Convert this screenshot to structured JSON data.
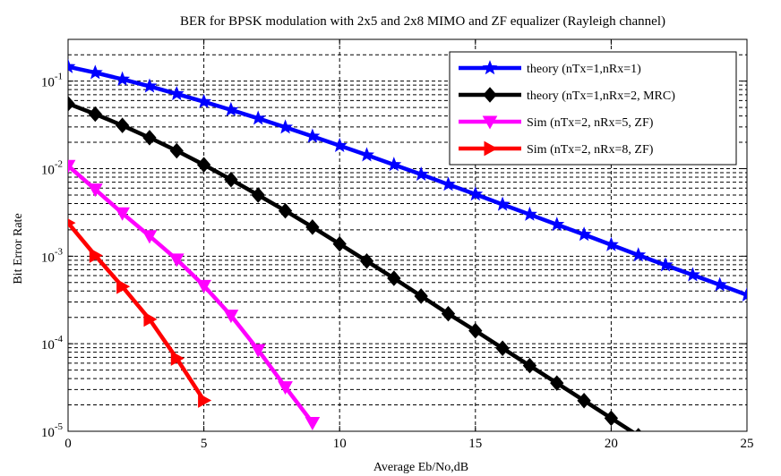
{
  "chart_data": {
    "type": "line",
    "title": "BER for BPSK modulation with 2x5 and 2x8 MIMO and ZF equalizer (Rayleigh channel)",
    "xlabel": "Average Eb/No,dB",
    "ylabel": "Bit Error Rate",
    "xlim": [
      0,
      25
    ],
    "ylim": [
      1e-05,
      0.3
    ],
    "yscale": "log",
    "grid": true,
    "legend_position": "top-right",
    "x_ticks": [
      {
        "value": 0,
        "label": "0"
      },
      {
        "value": 5,
        "label": "5"
      },
      {
        "value": 10,
        "label": "10"
      },
      {
        "value": 15,
        "label": "15"
      },
      {
        "value": 20,
        "label": "20"
      },
      {
        "value": 25,
        "label": "25"
      }
    ],
    "y_ticks": [
      {
        "value": 0.1,
        "base": "10",
        "exp": "-1"
      },
      {
        "value": 0.01,
        "base": "10",
        "exp": "-2"
      },
      {
        "value": 0.001,
        "base": "10",
        "exp": "-3"
      },
      {
        "value": 0.0001,
        "base": "10",
        "exp": "-4"
      },
      {
        "value": 1e-05,
        "base": "10",
        "exp": "-5"
      }
    ],
    "series": [
      {
        "name": "theory (nTx=1,nRx=1)",
        "color": "#0000ff",
        "marker": "pentagram",
        "x": [
          0,
          1,
          2,
          3,
          4,
          5,
          6,
          7,
          8,
          9,
          10,
          11,
          12,
          13,
          14,
          15,
          16,
          17,
          18,
          19,
          20,
          21,
          22,
          23,
          24,
          25
        ],
        "y": [
          0.146,
          0.125,
          0.105,
          0.0875,
          0.0715,
          0.0582,
          0.047,
          0.0375,
          0.0297,
          0.0234,
          0.0183,
          0.0143,
          0.0111,
          0.0086,
          0.0066,
          0.0051,
          0.0039,
          0.003,
          0.0023,
          0.00177,
          0.00135,
          0.00103,
          0.00079,
          0.00061,
          0.00047,
          0.00036
        ]
      },
      {
        "name": "theory (nTx=1,nRx=2, MRC)",
        "color": "#000000",
        "marker": "diamond",
        "x": [
          0,
          1,
          2,
          3,
          4,
          5,
          6,
          7,
          8,
          9,
          10,
          11,
          12,
          13,
          14,
          15,
          16,
          17,
          18,
          19,
          20,
          21
        ],
        "y": [
          0.0553,
          0.042,
          0.0312,
          0.0226,
          0.016,
          0.0111,
          0.0075,
          0.005,
          0.0033,
          0.00215,
          0.00138,
          0.00088,
          0.00056,
          0.00035,
          0.00022,
          0.000141,
          8.88e-05,
          5.62e-05,
          3.55e-05,
          2.24e-05,
          1.41e-05,
          8.9e-06
        ]
      },
      {
        "name": "Sim (nTx=2, nRx=5, ZF)",
        "color": "#ff00ff",
        "marker": "triangle-down",
        "x": [
          0,
          1,
          2,
          3,
          4,
          5,
          6,
          7,
          8,
          9
        ],
        "y": [
          0.0108,
          0.0058,
          0.0031,
          0.0017,
          0.00092,
          0.00046,
          0.00021,
          8.5e-05,
          3.2e-05,
          1.25e-05
        ]
      },
      {
        "name": "Sim (nTx=2, nRx=8, ZF)",
        "color": "#ff0000",
        "marker": "triangle-right",
        "x": [
          0,
          1,
          2,
          3,
          4,
          5
        ],
        "y": [
          0.0024,
          0.00102,
          0.00045,
          0.00019,
          6.8e-05,
          2.25e-05
        ]
      }
    ]
  }
}
